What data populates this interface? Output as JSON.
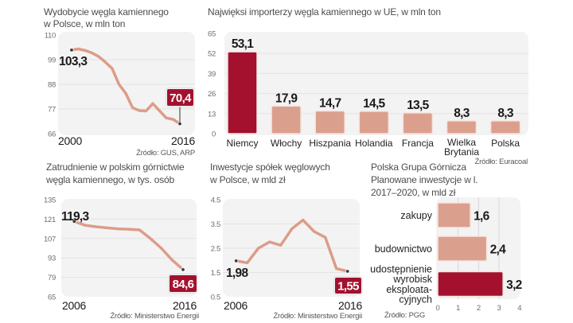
{
  "colors": {
    "highlight": "#a3112e",
    "bar": "#dba08d",
    "bar_outline": "#f6e4de",
    "line": "#dd9c88",
    "plot_bg": "#f3f3f3",
    "grid": "#e3e3e3",
    "grid_strong": "#d6d6d6"
  },
  "chart_data": [
    {
      "id": "coal-production",
      "type": "line",
      "title": [
        "Wydobycie węgla kamiennego",
        "w Polsce, w mln ton"
      ],
      "x": [
        2000,
        2001,
        2002,
        2003,
        2004,
        2005,
        2006,
        2007,
        2008,
        2009,
        2010,
        2011,
        2012,
        2013,
        2014,
        2015,
        2016
      ],
      "values": [
        103.3,
        103.8,
        103.1,
        102.0,
        100.4,
        97.9,
        95.0,
        88.0,
        84.0,
        77.6,
        76.3,
        76.1,
        79.4,
        76.2,
        73.0,
        72.4,
        70.4
      ],
      "ylim": [
        66,
        110
      ],
      "yticks": [
        110,
        99,
        88,
        77,
        66
      ],
      "xtick_labels": [
        "2000",
        "2016"
      ],
      "start_label": "103,3",
      "end_label": "70,4",
      "grid": true,
      "source": "Źródło:  GUS, ARP"
    },
    {
      "id": "eu-coal-importers",
      "type": "bar",
      "title": [
        "Najwięksi importerzy węgla kamiennego w UE, w mln ton"
      ],
      "categories": [
        "Niemcy",
        "Włochy",
        "Hiszpania",
        "Holandia",
        "Francja",
        "Wielka Brytania",
        "Polska"
      ],
      "category_label_lines": [
        [
          "Niemcy"
        ],
        [
          "Włochy"
        ],
        [
          "Hiszpania"
        ],
        [
          "Holandia"
        ],
        [
          "Francja"
        ],
        [
          "Wielka",
          "Brytania"
        ],
        [
          "Polska"
        ]
      ],
      "values": [
        53.1,
        17.9,
        14.7,
        14.5,
        13.5,
        8.3,
        8.3
      ],
      "value_labels": [
        "53,1",
        "17,9",
        "14,7",
        "14,5",
        "13,5",
        "8,3",
        "8,3"
      ],
      "highlight_index": 0,
      "ylim": [
        0,
        65
      ],
      "yticks": [
        65,
        52,
        39,
        26,
        13,
        0
      ],
      "grid": true,
      "source": "Źródło: Euracoal"
    },
    {
      "id": "mining-employment",
      "type": "line",
      "title": [
        "Zatrudnienie w polskim górnictwie",
        "węgla kamiennego, w tys. osób"
      ],
      "x": [
        2006,
        2007,
        2008,
        2009,
        2010,
        2011,
        2012,
        2013,
        2014,
        2015,
        2016
      ],
      "values": [
        119.3,
        116.5,
        115.5,
        114.7,
        114.0,
        113.7,
        113.2,
        107.0,
        100.0,
        91.5,
        84.6
      ],
      "ylim": [
        65,
        135
      ],
      "yticks": [
        135,
        121,
        107,
        93,
        79,
        65
      ],
      "xtick_labels": [
        "2006",
        "2016"
      ],
      "start_label": "119,3",
      "end_label": "84,6",
      "grid": true,
      "source": "Źródło: Ministerstwo Energii"
    },
    {
      "id": "coal-company-investment",
      "type": "line",
      "title": [
        "Inwestycje spółek węglowych",
        "w Polsce, w mld zł"
      ],
      "x": [
        2006,
        2007,
        2008,
        2009,
        2010,
        2011,
        2012,
        2013,
        2014,
        2015,
        2016
      ],
      "values": [
        1.98,
        1.9,
        2.5,
        2.76,
        2.62,
        3.3,
        3.66,
        3.19,
        2.95,
        1.66,
        1.55
      ],
      "ylim": [
        0.5,
        4.5
      ],
      "yticks": [
        4.5,
        3.5,
        2.5,
        1.5,
        0.5
      ],
      "xtick_labels": [
        "2006",
        "2016"
      ],
      "start_label": "1,98",
      "end_label": "1,55",
      "grid": true,
      "source": "Źródło: Ministerstwo Energii"
    },
    {
      "id": "pgg-planned-investment",
      "type": "bar",
      "orientation": "horizontal",
      "title": [
        "Polska Grupa Górnicza",
        "Planowane inwestycje w l.",
        "2017–2020, w mld zł"
      ],
      "categories": [
        "zakupy",
        "budownictwo",
        "udostępnienie wyrobisk eksploatacyjnych"
      ],
      "category_label_lines": [
        [
          "zakupy"
        ],
        [
          "budownictwo"
        ],
        [
          "udostępnienie",
          "wyrobisk",
          "eksploata-",
          "cyjnych"
        ]
      ],
      "values": [
        1.6,
        2.4,
        3.2
      ],
      "value_labels": [
        "1,6",
        "2,4",
        "3,2"
      ],
      "highlight_index": 2,
      "xlim": [
        0,
        4
      ],
      "xticks": [
        0,
        1,
        2,
        3,
        4
      ],
      "grid": true,
      "source": "Źródło: PGG"
    }
  ]
}
